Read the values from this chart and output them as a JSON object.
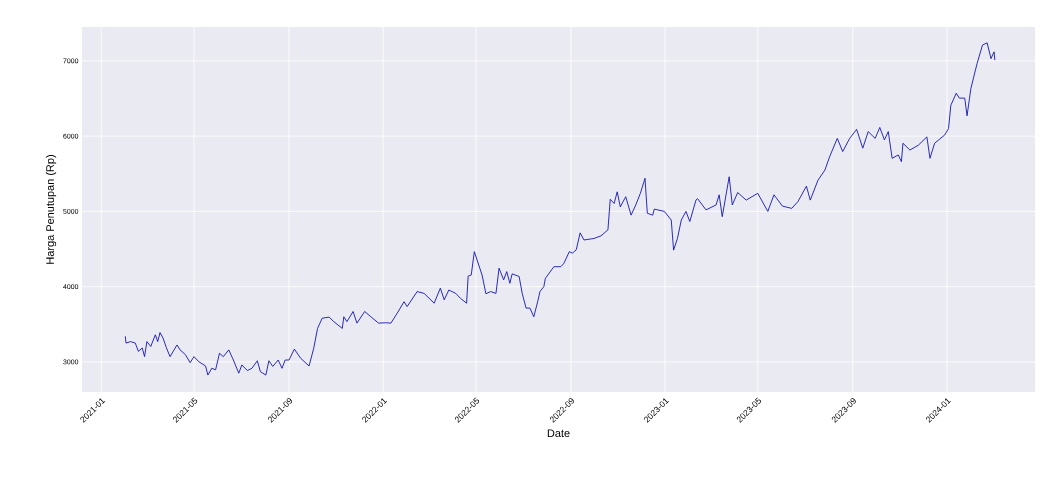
{
  "chart_data": {
    "type": "line",
    "xlabel": "Date",
    "ylabel": "Harga Penutupan (Rp)",
    "xlim": [
      "2020-12-07",
      "2024-04-24"
    ],
    "ylim": [
      2600,
      7450
    ],
    "xticks": [
      "2021-01",
      "2021-05",
      "2021-09",
      "2022-01",
      "2022-05",
      "2022-09",
      "2023-01",
      "2023-05",
      "2023-09",
      "2024-01"
    ],
    "yticks": [
      3000,
      4000,
      5000,
      6000,
      7000
    ],
    "grid": true,
    "series": [
      {
        "color": "#1414b4",
        "x": [
          "2021-02-01",
          "2021-02-02",
          "2021-02-08",
          "2021-02-14",
          "2021-02-18",
          "2021-02-23",
          "2021-02-26",
          "2021-03-01",
          "2021-03-06",
          "2021-03-12",
          "2021-03-15",
          "2021-03-18",
          "2021-03-22",
          "2021-03-26",
          "2021-03-31",
          "2021-04-09",
          "2021-04-13",
          "2021-04-20",
          "2021-04-26",
          "2021-05-01",
          "2021-05-07",
          "2021-05-16",
          "2021-05-19",
          "2021-05-24",
          "2021-05-29",
          "2021-06-03",
          "2021-06-08",
          "2021-06-15",
          "2021-06-21",
          "2021-06-28",
          "2021-07-02",
          "2021-07-09",
          "2021-07-15",
          "2021-07-22",
          "2021-07-26",
          "2021-08-02",
          "2021-08-06",
          "2021-08-11",
          "2021-08-18",
          "2021-08-23",
          "2021-08-27",
          "2021-09-01",
          "2021-09-08",
          "2021-09-16",
          "2021-09-27",
          "2021-10-03",
          "2021-10-08",
          "2021-10-14",
          "2021-10-23",
          "2021-10-29",
          "2021-11-09",
          "2021-11-11",
          "2021-11-15",
          "2021-11-23",
          "2021-11-28",
          "2021-12-08",
          "2021-12-16",
          "2021-12-26",
          "2022-01-04",
          "2022-01-11",
          "2022-01-19",
          "2022-01-28",
          "2022-02-01",
          "2022-02-14",
          "2022-02-23",
          "2022-03-08",
          "2022-03-16",
          "2022-03-21",
          "2022-03-27",
          "2022-04-05",
          "2022-04-11",
          "2022-04-19",
          "2022-04-21",
          "2022-04-25",
          "2022-04-29",
          "2022-05-09",
          "2022-05-14",
          "2022-05-20",
          "2022-05-27",
          "2022-05-31",
          "2022-06-06",
          "2022-06-10",
          "2022-06-14",
          "2022-06-17",
          "2022-06-26",
          "2022-06-30",
          "2022-07-05",
          "2022-07-10",
          "2022-07-15",
          "2022-07-20",
          "2022-07-23",
          "2022-07-28",
          "2022-07-30",
          "2022-08-10",
          "2022-08-19",
          "2022-08-23",
          "2022-08-30",
          "2022-09-03",
          "2022-09-08",
          "2022-09-13",
          "2022-09-18",
          "2022-10-01",
          "2022-10-10",
          "2022-10-19",
          "2022-10-22",
          "2022-10-27",
          "2022-10-31",
          "2022-11-04",
          "2022-11-11",
          "2022-11-18",
          "2022-11-24",
          "2022-11-30",
          "2022-12-06",
          "2022-12-09",
          "2022-12-16",
          "2022-12-18",
          "2022-12-31",
          "2023-01-09",
          "2023-01-12",
          "2023-01-17",
          "2023-01-22",
          "2023-01-28",
          "2023-02-02",
          "2023-02-10",
          "2023-02-12",
          "2023-02-23",
          "2023-03-08",
          "2023-03-12",
          "2023-03-16",
          "2023-03-25",
          "2023-03-29",
          "2023-04-05",
          "2023-04-16",
          "2023-05-01",
          "2023-05-14",
          "2023-05-22",
          "2023-06-02",
          "2023-06-14",
          "2023-06-22",
          "2023-07-03",
          "2023-07-08",
          "2023-07-18",
          "2023-07-27",
          "2023-08-02",
          "2023-08-12",
          "2023-08-19",
          "2023-08-28",
          "2023-09-06",
          "2023-09-14",
          "2023-09-21",
          "2023-09-30",
          "2023-10-06",
          "2023-10-12",
          "2023-10-17",
          "2023-10-22",
          "2023-10-30",
          "2023-11-03",
          "2023-11-05",
          "2023-11-14",
          "2023-11-25",
          "2023-12-06",
          "2023-12-10",
          "2023-12-16",
          "2023-12-29",
          "2024-01-03",
          "2024-01-06",
          "2024-01-13",
          "2024-01-17",
          "2024-01-24",
          "2024-01-27",
          "2024-02-01",
          "2024-02-09",
          "2024-02-16",
          "2024-02-22",
          "2024-02-27",
          "2024-03-02",
          "2024-03-03"
        ],
        "values": [
          3340,
          3250,
          3270,
          3250,
          3140,
          3185,
          3070,
          3270,
          3205,
          3360,
          3270,
          3390,
          3315,
          3195,
          3070,
          3225,
          3160,
          3095,
          2990,
          3070,
          3005,
          2945,
          2825,
          2915,
          2895,
          3115,
          3070,
          3160,
          3025,
          2850,
          2960,
          2885,
          2915,
          3015,
          2870,
          2825,
          3015,
          2940,
          3025,
          2915,
          3025,
          3025,
          3170,
          3050,
          2945,
          3180,
          3445,
          3580,
          3595,
          3535,
          3445,
          3600,
          3535,
          3670,
          3515,
          3670,
          3600,
          3515,
          3520,
          3515,
          3645,
          3800,
          3735,
          3935,
          3910,
          3780,
          3980,
          3825,
          3955,
          3910,
          3845,
          3780,
          4140,
          4155,
          4465,
          4155,
          3905,
          3935,
          3910,
          4245,
          4090,
          4200,
          4045,
          4170,
          4135,
          3910,
          3715,
          3715,
          3600,
          3800,
          3935,
          4000,
          4110,
          4265,
          4265,
          4310,
          4465,
          4445,
          4490,
          4715,
          4620,
          4640,
          4675,
          4755,
          5160,
          5105,
          5260,
          5060,
          5195,
          4950,
          5085,
          5240,
          5440,
          4975,
          4950,
          5030,
          5000,
          4885,
          4485,
          4640,
          4885,
          5000,
          4865,
          5150,
          5170,
          5020,
          5085,
          5220,
          4930,
          5460,
          5085,
          5250,
          5150,
          5240,
          5000,
          5220,
          5070,
          5040,
          5130,
          5335,
          5150,
          5415,
          5550,
          5725,
          5970,
          5795,
          5970,
          6090,
          5840,
          6060,
          5970,
          6115,
          5950,
          6060,
          5705,
          5750,
          5660,
          5905,
          5815,
          5880,
          5990,
          5705,
          5905,
          6015,
          6100,
          6410,
          6570,
          6505,
          6505,
          6270,
          6635,
          6965,
          7210,
          7240,
          7030,
          7120,
          7010
        ]
      }
    ]
  }
}
